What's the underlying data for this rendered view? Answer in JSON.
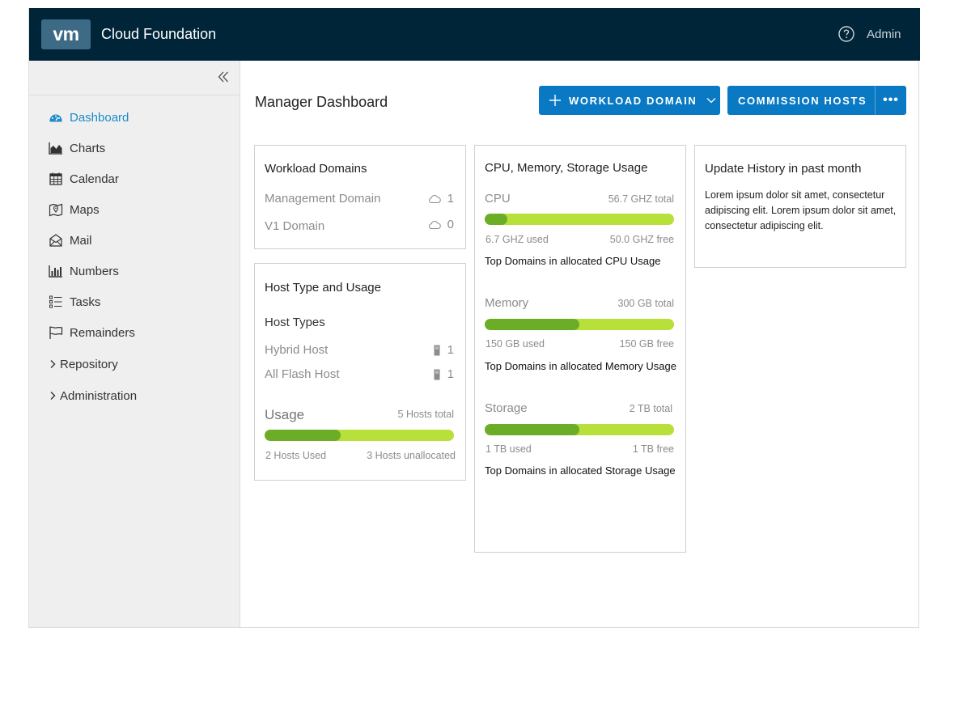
{
  "header": {
    "logo": "vm",
    "title": "Cloud Foundation",
    "help_icon": "help-circle-icon",
    "user": "Admin"
  },
  "sidebar": {
    "collapse_icon": "double-chevron-left-icon",
    "items": [
      {
        "label": "Dashboard",
        "icon": "dashboard-icon",
        "active": true
      },
      {
        "label": "Charts",
        "icon": "area-chart-icon"
      },
      {
        "label": "Calendar",
        "icon": "calendar-icon"
      },
      {
        "label": "Maps",
        "icon": "map-icon"
      },
      {
        "label": "Mail",
        "icon": "mail-icon"
      },
      {
        "label": "Numbers",
        "icon": "bar-chart-icon"
      },
      {
        "label": "Tasks",
        "icon": "task-list-icon"
      },
      {
        "label": "Remainders",
        "icon": "flag-icon"
      },
      {
        "label": "Repository",
        "icon": "chevron-right-icon",
        "expandable": true
      },
      {
        "label": "Administration",
        "icon": "chevron-right-icon",
        "expandable": true
      }
    ]
  },
  "main": {
    "title": "Manager Dashboard",
    "actions": {
      "workload_domain": "WORKLOAD DOMAIN",
      "commission_hosts": "COMMISSION HOSTS",
      "more": "•••"
    }
  },
  "workload_domains": {
    "title": "Workload Domains",
    "rows": [
      {
        "label": "Management Domain",
        "icon": "cloud-icon",
        "count": "1"
      },
      {
        "label": "V1 Domain",
        "icon": "cloud-icon",
        "count": "0"
      }
    ]
  },
  "host_usage": {
    "title": "Host Type and Usage",
    "types_heading": "Host Types",
    "rows": [
      {
        "label": "Hybrid Host",
        "icon": "server-icon",
        "count": "1"
      },
      {
        "label": "All Flash Host",
        "icon": "server-icon",
        "count": "1"
      }
    ],
    "usage_heading": "Usage",
    "total": "5 Hosts total",
    "used": "2 Hosts Used",
    "unallocated": "3 Hosts unallocated",
    "used_fraction": 0.4
  },
  "resources": {
    "title": "CPU, Memory, Storage Usage",
    "items": [
      {
        "name": "CPU",
        "total": "56.7 GHZ total",
        "used": "6.7 GHZ used",
        "free": "50.0 GHZ free",
        "link": "Top Domains in allocated CPU Usage",
        "used_fraction": 0.118
      },
      {
        "name": "Memory",
        "total": "300 GB total",
        "used": "150 GB used",
        "free": "150 GB free",
        "link": "Top Domains in allocated Memory Usage",
        "used_fraction": 0.5
      },
      {
        "name": "Storage",
        "total": "2 TB total",
        "used": "1 TB used",
        "free": "1 TB free",
        "link": "Top Domains in allocated Storage Usage",
        "used_fraction": 0.5
      }
    ]
  },
  "update_history": {
    "title": "Update History in past month",
    "text": "Lorem ipsum dolor sit amet, consectetur adipiscing elit. Lorem ipsum dolor sit amet, consectetur adipiscing elit."
  },
  "colors": {
    "header_bg": "#002538",
    "primary": "#0979c4",
    "bar_used": "#6cad28",
    "bar_free": "#b8e03a",
    "active_nav": "#1d8acb"
  }
}
